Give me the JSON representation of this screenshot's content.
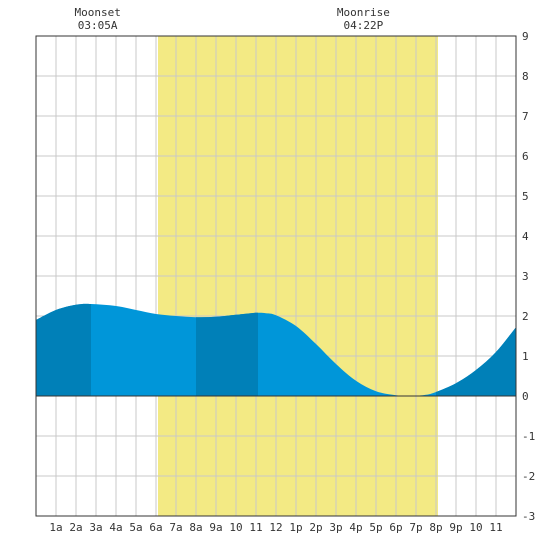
{
  "moon_events": [
    {
      "label": "Moonset",
      "time": "03:05A",
      "hour": 3.083
    },
    {
      "label": "Moonrise",
      "time": "04:22P",
      "hour": 16.367
    }
  ],
  "colors": {
    "daylight": "#f3ea84",
    "tide_light": "#0096d9",
    "tide_dark": "#0080b8",
    "grid": "#c8c8c8",
    "axis": "#333333",
    "zero_line": "#333333"
  },
  "chart_data": {
    "type": "area",
    "title": "",
    "xlabel": "",
    "ylabel": "",
    "xlim": [
      0,
      24
    ],
    "ylim": [
      -3,
      9
    ],
    "yticks": [
      -3,
      -2,
      -1,
      0,
      1,
      2,
      3,
      4,
      5,
      6,
      7,
      8,
      9
    ],
    "xticks": [
      {
        "hour": 1,
        "label": "1a"
      },
      {
        "hour": 2,
        "label": "2a"
      },
      {
        "hour": 3,
        "label": "3a"
      },
      {
        "hour": 4,
        "label": "4a"
      },
      {
        "hour": 5,
        "label": "5a"
      },
      {
        "hour": 6,
        "label": "6a"
      },
      {
        "hour": 7,
        "label": "7a"
      },
      {
        "hour": 8,
        "label": "8a"
      },
      {
        "hour": 9,
        "label": "9a"
      },
      {
        "hour": 10,
        "label": "10"
      },
      {
        "hour": 11,
        "label": "11"
      },
      {
        "hour": 12,
        "label": "12"
      },
      {
        "hour": 13,
        "label": "1p"
      },
      {
        "hour": 14,
        "label": "2p"
      },
      {
        "hour": 15,
        "label": "3p"
      },
      {
        "hour": 16,
        "label": "4p"
      },
      {
        "hour": 17,
        "label": "5p"
      },
      {
        "hour": 18,
        "label": "6p"
      },
      {
        "hour": 19,
        "label": "7p"
      },
      {
        "hour": 20,
        "label": "8p"
      },
      {
        "hour": 21,
        "label": "9p"
      },
      {
        "hour": 22,
        "label": "10"
      },
      {
        "hour": 23,
        "label": "11"
      }
    ],
    "daylight": {
      "start": 6.1,
      "end": 20.1
    },
    "dark_bands": [
      {
        "start": 0,
        "end": 2.75
      },
      {
        "start": 8.0,
        "end": 11.1
      },
      {
        "start": 20.0,
        "end": 24
      }
    ],
    "tide": {
      "x": [
        0,
        1,
        2,
        2.75,
        4,
        5,
        6,
        7,
        8,
        9,
        10,
        11,
        11.5,
        12,
        13,
        14,
        15,
        16,
        17,
        18,
        18.75,
        19.5,
        20,
        21,
        22,
        23,
        24
      ],
      "y": [
        1.9,
        2.15,
        2.28,
        2.3,
        2.25,
        2.15,
        2.05,
        2.0,
        1.97,
        1.98,
        2.03,
        2.08,
        2.07,
        2.02,
        1.75,
        1.3,
        0.8,
        0.38,
        0.12,
        0.02,
        0.0,
        0.03,
        0.1,
        0.32,
        0.65,
        1.1,
        1.72
      ]
    }
  }
}
